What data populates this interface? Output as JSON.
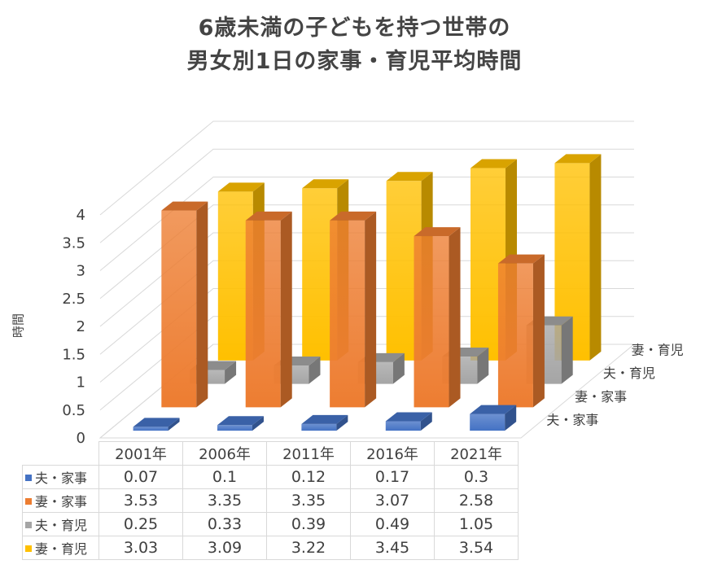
{
  "chart_data": {
    "type": "bar",
    "title_lines": [
      "6歳未満の子どもを持つ世帯の",
      "男女別1日の家事・育児平均時間"
    ],
    "ylabel": "時間",
    "xlabel": "",
    "ylim": [
      0,
      4
    ],
    "y_ticks": [
      "0",
      "0.5",
      "1",
      "1.5",
      "2",
      "2.5",
      "3",
      "3.5",
      "4"
    ],
    "categories": [
      "2001年",
      "2006年",
      "2011年",
      "2016年",
      "2021年"
    ],
    "grid": true,
    "legend": "data-table",
    "series": [
      {
        "name": "夫・家事",
        "color": "#4472c4",
        "values": [
          0.07,
          0.1,
          0.12,
          0.17,
          0.3
        ],
        "display": [
          "0.07",
          "0.1",
          "0.12",
          "0.17",
          "0.3"
        ]
      },
      {
        "name": "妻・家事",
        "color": "#ed7d31",
        "values": [
          3.53,
          3.35,
          3.35,
          3.07,
          2.58
        ],
        "display": [
          "3.53",
          "3.35",
          "3.35",
          "3.07",
          "2.58"
        ]
      },
      {
        "name": "夫・育児",
        "color": "#a5a5a5",
        "values": [
          0.25,
          0.33,
          0.39,
          0.49,
          1.05
        ],
        "display": [
          "0.25",
          "0.33",
          "0.39",
          "0.49",
          "1.05"
        ]
      },
      {
        "name": "妻・育児",
        "color": "#ffc000",
        "values": [
          3.03,
          3.09,
          3.22,
          3.45,
          3.54
        ],
        "display": [
          "3.03",
          "3.09",
          "3.22",
          "3.45",
          "3.54"
        ]
      }
    ]
  }
}
